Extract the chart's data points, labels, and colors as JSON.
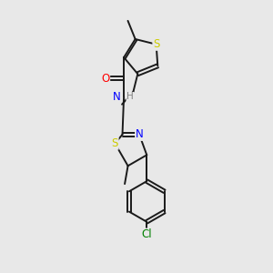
{
  "background_color": "#e8e8e8",
  "bond_color": "#1a1a1a",
  "atom_colors": {
    "S": "#cccc00",
    "O": "#ff0000",
    "N": "#0000ff",
    "Cl": "#008000",
    "C": "#1a1a1a",
    "H": "#808080"
  },
  "font_size": 8.5,
  "line_width": 1.4,
  "figsize": [
    3.0,
    3.0
  ],
  "dpi": 100,
  "xlim": [
    2.5,
    7.5
  ],
  "ylim": [
    0.5,
    10.0
  ]
}
